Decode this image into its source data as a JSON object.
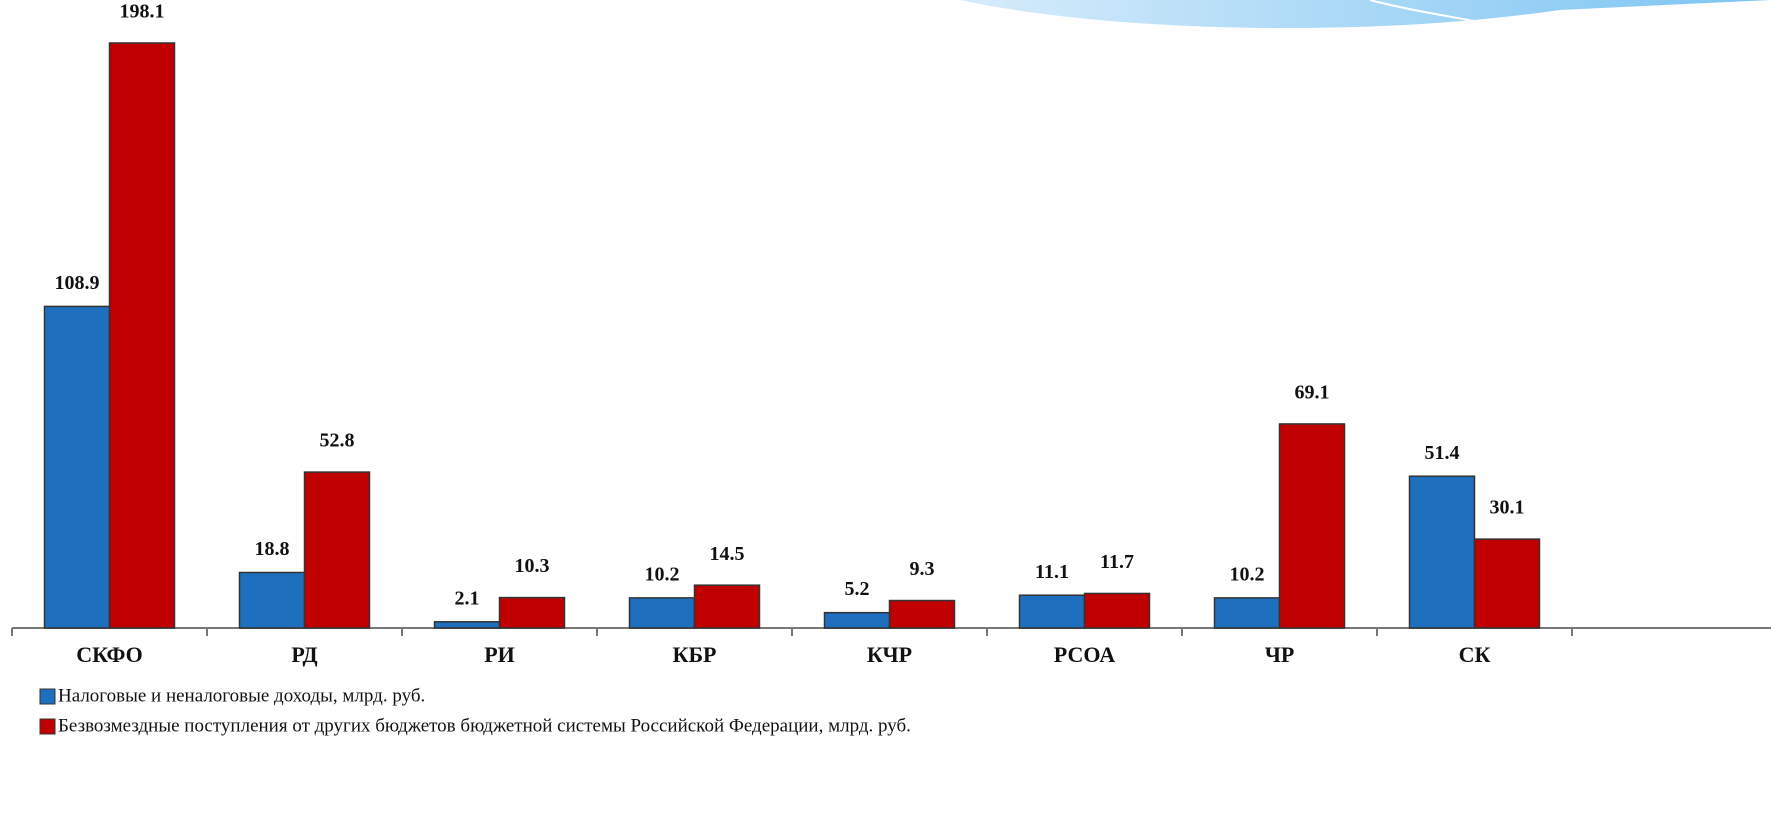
{
  "chart_data": {
    "type": "bar",
    "categories": [
      "СКФО",
      "РД",
      "РИ",
      "КБР",
      "КЧР",
      "РСОА",
      "ЧР",
      "СК"
    ],
    "series": [
      {
        "name": "Налоговые и неналоговые доходы, млрд. руб.",
        "color": "#1f6fbf",
        "values": [
          108.9,
          18.8,
          2.1,
          10.2,
          5.2,
          11.1,
          10.2,
          51.4
        ]
      },
      {
        "name": "Безвозмездные поступления от других бюджетов бюджетной системы Российской Федерации, млрд. руб.",
        "color": "#c00000",
        "values": [
          198.1,
          52.8,
          10.3,
          14.5,
          9.3,
          11.7,
          69.1,
          30.1
        ]
      }
    ]
  }
}
